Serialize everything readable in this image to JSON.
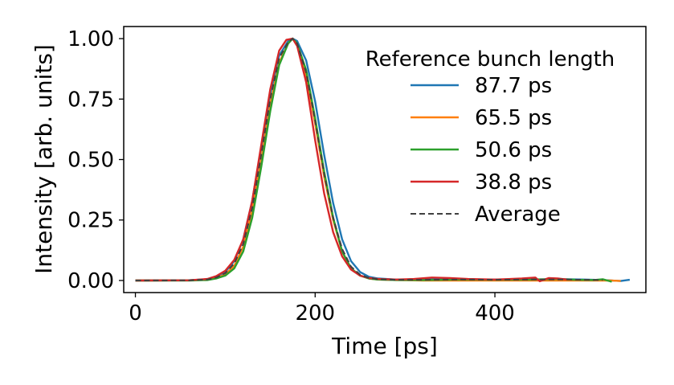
{
  "chart_data": {
    "type": "line",
    "xlabel": "Time [ps]",
    "ylabel": "Intensity [arb. units]",
    "xlim": [
      -13,
      568
    ],
    "ylim": [
      -0.05,
      1.05
    ],
    "xticks": [
      0,
      200,
      400
    ],
    "xtick_labels": [
      "0",
      "200",
      "400"
    ],
    "yticks": [
      0,
      0.25,
      0.5,
      0.75,
      1.0
    ],
    "ytick_labels": [
      "0.00",
      "0.25",
      "0.50",
      "0.75",
      "1.00"
    ],
    "grid": false,
    "legend": {
      "title": "Reference bunch length",
      "placement": "top-right",
      "frame": false
    },
    "series": [
      {
        "name": "87.7 ps",
        "color": "#1f77b4",
        "style": "solid",
        "x": [
          0,
          60,
          80,
          90,
          100,
          110,
          120,
          130,
          140,
          150,
          160,
          170,
          175,
          180,
          190,
          200,
          210,
          220,
          230,
          240,
          250,
          260,
          270,
          290,
          320,
          360,
          400,
          440,
          480,
          500,
          520,
          540,
          550
        ],
        "y": [
          0,
          0.001,
          0.005,
          0.015,
          0.035,
          0.08,
          0.17,
          0.33,
          0.55,
          0.77,
          0.93,
          0.99,
          1.0,
          0.99,
          0.91,
          0.74,
          0.52,
          0.32,
          0.17,
          0.08,
          0.035,
          0.015,
          0.008,
          0.004,
          0.004,
          0.005,
          0.004,
          0.004,
          0.005,
          0.004,
          0.002,
          -0.002,
          0.003
        ]
      },
      {
        "name": "65.5 ps",
        "color": "#ff7f0e",
        "style": "solid",
        "x": [
          0,
          60,
          80,
          90,
          100,
          110,
          120,
          130,
          140,
          150,
          160,
          170,
          175,
          180,
          190,
          200,
          210,
          220,
          230,
          240,
          250,
          260,
          270,
          290,
          320,
          360,
          400,
          440,
          480,
          500,
          520,
          530,
          540
        ],
        "y": [
          0,
          0.001,
          0.004,
          0.01,
          0.025,
          0.06,
          0.14,
          0.29,
          0.5,
          0.73,
          0.9,
          0.98,
          1.0,
          0.97,
          0.85,
          0.65,
          0.43,
          0.25,
          0.12,
          0.05,
          0.02,
          0.008,
          0.004,
          0.002,
          0.0,
          0.0,
          0.0,
          0.0,
          0.0,
          0.0,
          0.0,
          0.0,
          -0.002
        ]
      },
      {
        "name": "50.6 ps",
        "color": "#2ca02c",
        "style": "solid",
        "x": [
          0,
          60,
          80,
          90,
          100,
          110,
          120,
          130,
          140,
          150,
          160,
          170,
          175,
          180,
          190,
          200,
          210,
          220,
          230,
          240,
          250,
          260,
          270,
          290,
          320,
          360,
          400,
          440,
          470,
          490,
          510,
          520,
          530
        ],
        "y": [
          0,
          0.0,
          0.002,
          0.008,
          0.02,
          0.05,
          0.12,
          0.26,
          0.47,
          0.7,
          0.89,
          0.98,
          1.0,
          0.98,
          0.87,
          0.67,
          0.45,
          0.26,
          0.12,
          0.05,
          0.02,
          0.008,
          0.004,
          0.002,
          0.002,
          0.004,
          0.003,
          0.004,
          0.006,
          0.003,
          0.002,
          0.005,
          -0.005
        ]
      },
      {
        "name": "38.8 ps",
        "color": "#d62728",
        "style": "solid",
        "x": [
          0,
          60,
          80,
          90,
          100,
          110,
          120,
          130,
          140,
          150,
          160,
          168,
          175,
          180,
          190,
          200,
          210,
          220,
          230,
          240,
          250,
          260,
          270,
          290,
          310,
          330,
          350,
          370,
          400,
          430,
          445,
          450,
          460,
          470,
          480
        ],
        "y": [
          0,
          0.001,
          0.006,
          0.018,
          0.04,
          0.085,
          0.17,
          0.33,
          0.56,
          0.79,
          0.95,
          0.995,
          1.0,
          0.97,
          0.82,
          0.58,
          0.36,
          0.2,
          0.1,
          0.045,
          0.02,
          0.01,
          0.006,
          0.004,
          0.006,
          0.012,
          0.01,
          0.006,
          0.004,
          0.008,
          0.012,
          -0.003,
          0.01,
          0.008,
          0.004
        ]
      },
      {
        "name": "Average",
        "color": "#404040",
        "style": "dashed",
        "x": [
          0,
          60,
          80,
          90,
          100,
          110,
          120,
          130,
          140,
          150,
          160,
          170,
          175,
          180,
          190,
          200,
          210,
          220,
          230,
          240,
          250,
          260,
          270,
          290,
          320,
          360,
          400,
          440,
          480,
          500,
          520
        ],
        "y": [
          0,
          0.001,
          0.004,
          0.012,
          0.03,
          0.07,
          0.15,
          0.3,
          0.52,
          0.75,
          0.92,
          0.985,
          1.0,
          0.98,
          0.86,
          0.66,
          0.44,
          0.26,
          0.13,
          0.057,
          0.024,
          0.01,
          0.005,
          0.003,
          0.003,
          0.004,
          0.003,
          0.004,
          0.004,
          0.003,
          0.002
        ]
      }
    ]
  }
}
